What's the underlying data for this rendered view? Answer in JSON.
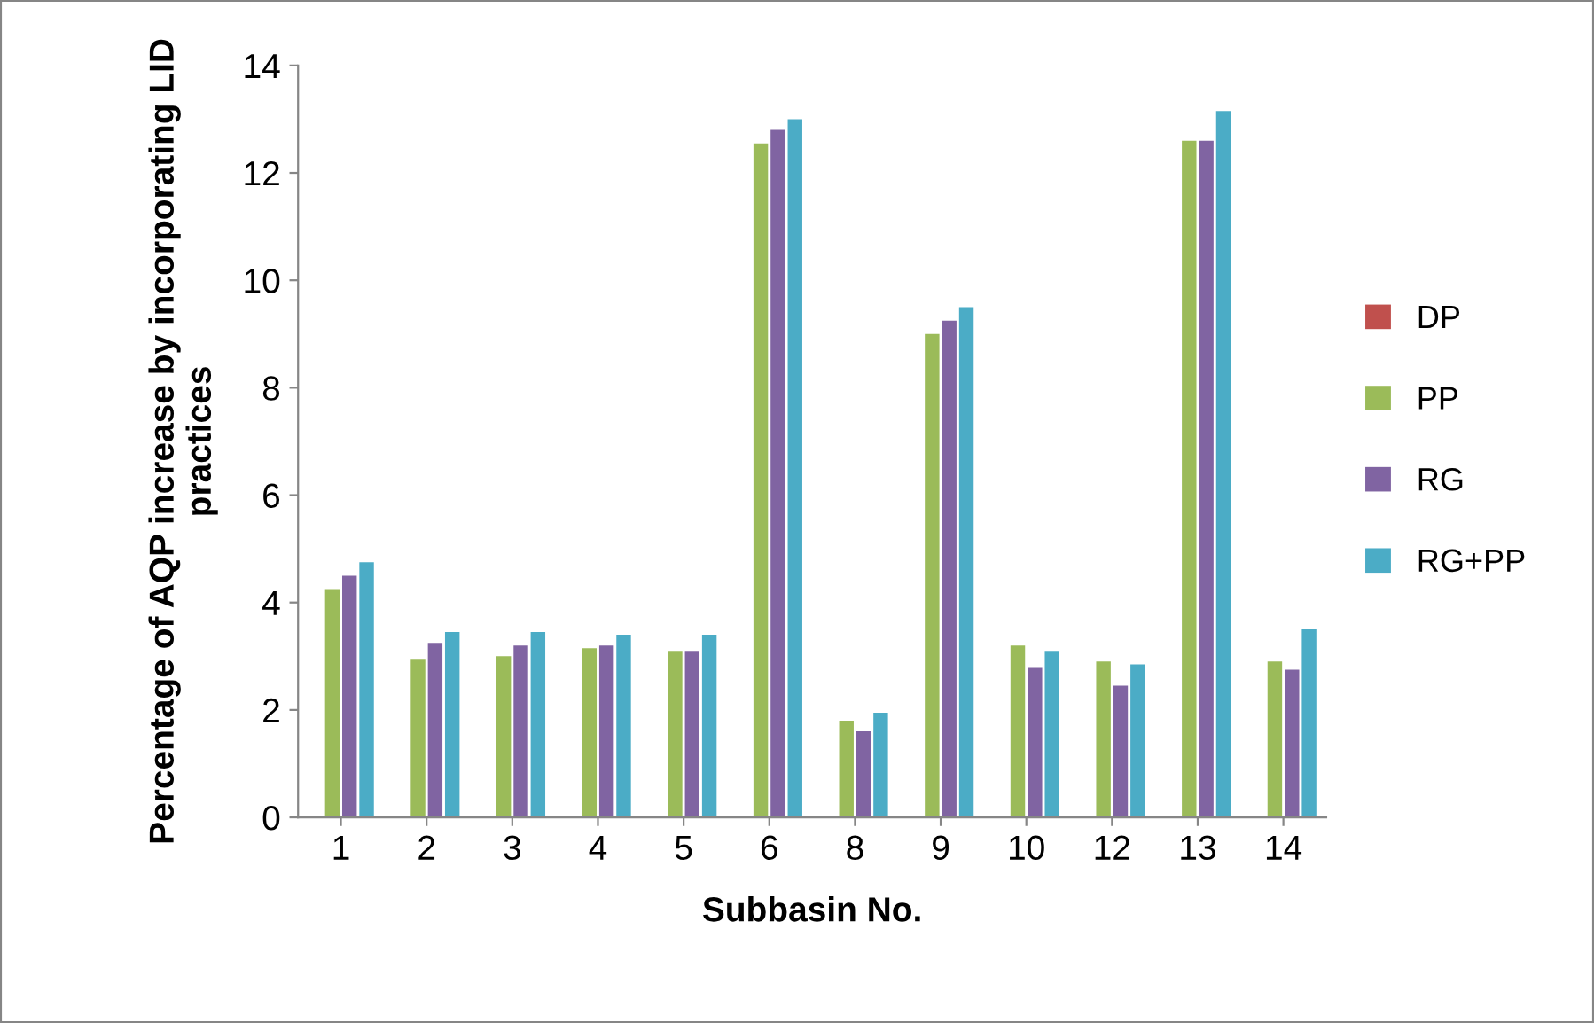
{
  "chart_data": {
    "type": "bar",
    "xlabel": "Subbasin No.",
    "ylabel": "Percentage of AQP increase by incorporating LID practices",
    "categories": [
      "1",
      "2",
      "3",
      "4",
      "5",
      "6",
      "8",
      "9",
      "10",
      "12",
      "13",
      "14"
    ],
    "series": [
      {
        "name": "DP",
        "color": "#c0504d",
        "values": [
          0,
          0,
          0,
          0,
          0,
          0,
          0,
          0,
          0,
          0,
          0,
          0
        ]
      },
      {
        "name": "PP",
        "color": "#9bbb59",
        "values": [
          4.25,
          2.95,
          3.0,
          3.15,
          3.1,
          12.55,
          1.8,
          9.0,
          3.2,
          2.9,
          12.6,
          2.9
        ]
      },
      {
        "name": "RG",
        "color": "#8064a2",
        "values": [
          4.5,
          3.25,
          3.2,
          3.2,
          3.1,
          12.8,
          1.6,
          9.25,
          2.8,
          2.45,
          12.6,
          2.75
        ]
      },
      {
        "name": "RG+PP",
        "color": "#4bacc6",
        "values": [
          4.75,
          3.45,
          3.45,
          3.4,
          3.4,
          13.0,
          1.95,
          9.5,
          3.1,
          2.85,
          13.15,
          3.5
        ]
      }
    ],
    "ylim": [
      0,
      14
    ],
    "yticks": [
      0,
      2,
      4,
      6,
      8,
      10,
      12,
      14
    ],
    "grid": false,
    "legend": "right"
  }
}
